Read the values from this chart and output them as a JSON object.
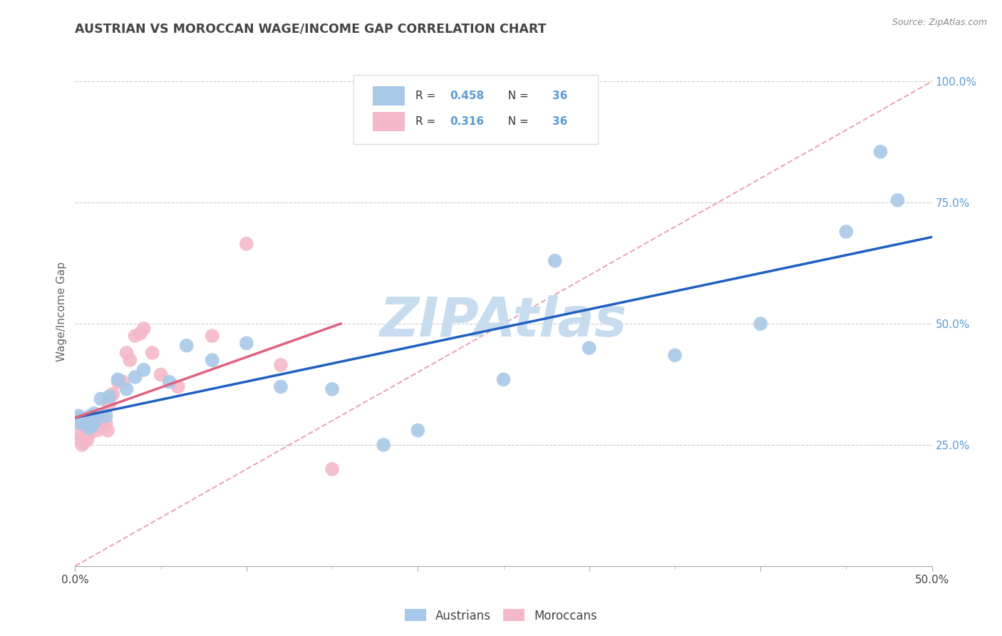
{
  "title": "AUSTRIAN VS MOROCCAN WAGE/INCOME GAP CORRELATION CHART",
  "source": "Source: ZipAtlas.com",
  "ylabel": "Wage/Income Gap",
  "watermark": "ZIPAtlas",
  "xlim": [
    0.0,
    0.5
  ],
  "ylim": [
    0.0,
    1.05
  ],
  "yticks_right": [
    0.25,
    0.5,
    0.75,
    1.0
  ],
  "yticklabels_right": [
    "25.0%",
    "50.0%",
    "75.0%",
    "100.0%"
  ],
  "austrians_x": [
    0.001,
    0.002,
    0.003,
    0.004,
    0.005,
    0.006,
    0.007,
    0.008,
    0.009,
    0.01,
    0.011,
    0.012,
    0.013,
    0.015,
    0.018,
    0.02,
    0.025,
    0.03,
    0.035,
    0.04,
    0.055,
    0.065,
    0.08,
    0.1,
    0.12,
    0.15,
    0.18,
    0.2,
    0.25,
    0.28,
    0.3,
    0.35,
    0.4,
    0.45,
    0.47,
    0.48
  ],
  "austrians_y": [
    0.305,
    0.31,
    0.295,
    0.3,
    0.295,
    0.305,
    0.3,
    0.285,
    0.31,
    0.29,
    0.315,
    0.3,
    0.31,
    0.345,
    0.31,
    0.35,
    0.385,
    0.365,
    0.39,
    0.405,
    0.38,
    0.455,
    0.425,
    0.46,
    0.37,
    0.365,
    0.25,
    0.28,
    0.385,
    0.63,
    0.45,
    0.435,
    0.5,
    0.69,
    0.855,
    0.755
  ],
  "moroccans_x": [
    0.001,
    0.002,
    0.003,
    0.004,
    0.005,
    0.006,
    0.007,
    0.007,
    0.008,
    0.009,
    0.01,
    0.011,
    0.012,
    0.013,
    0.014,
    0.015,
    0.016,
    0.017,
    0.018,
    0.019,
    0.02,
    0.022,
    0.025,
    0.028,
    0.03,
    0.032,
    0.035,
    0.038,
    0.04,
    0.045,
    0.05,
    0.06,
    0.08,
    0.1,
    0.12,
    0.15
  ],
  "moroccans_y": [
    0.295,
    0.27,
    0.26,
    0.25,
    0.255,
    0.27,
    0.27,
    0.26,
    0.275,
    0.275,
    0.295,
    0.305,
    0.295,
    0.28,
    0.3,
    0.29,
    0.31,
    0.305,
    0.295,
    0.28,
    0.335,
    0.355,
    0.38,
    0.38,
    0.44,
    0.425,
    0.475,
    0.48,
    0.49,
    0.44,
    0.395,
    0.37,
    0.475,
    0.665,
    0.415,
    0.2
  ],
  "blue_color": "#A8C8E8",
  "pink_color": "#F4B8C8",
  "blue_line_color": "#2060C0",
  "pink_line_color": "#E06080",
  "dashed_line_color": "#E8A8B8",
  "grid_color": "#CCCCCC",
  "title_color": "#444444",
  "right_axis_color": "#5B9BD5",
  "watermark_color": "#C8DCF0",
  "background_color": "#FFFFFF",
  "legend_r1": "0.458",
  "legend_n1": "36",
  "legend_r2": "0.316",
  "legend_n2": "36"
}
